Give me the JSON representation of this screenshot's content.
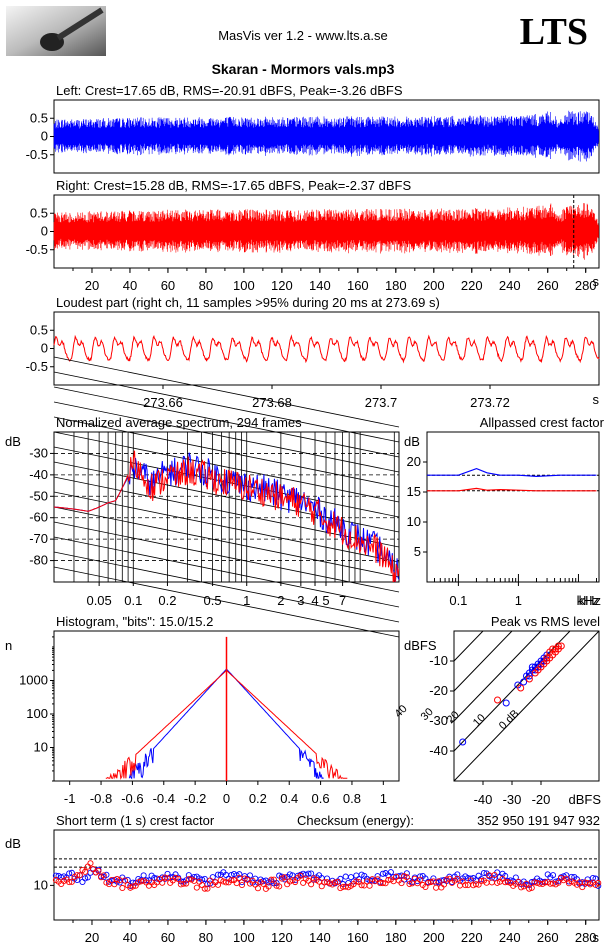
{
  "header": {
    "app_title": "MasVis ver 1.2 - www.lts.a.se",
    "logo_text": "LTS",
    "file_title": "Skaran - Mormors vals.mp3"
  },
  "chart_data": [
    {
      "type": "line",
      "panel": "waveform-left",
      "title": "Left: Crest=17.65 dB, RMS=-20.91 dBFS, Peak=-3.26 dBFS",
      "channel": "left",
      "color": "#0000ff",
      "ylim": [
        -1,
        1
      ],
      "ytick_labels": [
        "0.5",
        "0",
        "-0.5"
      ],
      "yticks": [
        0.5,
        0,
        -0.5
      ],
      "xlim": [
        0,
        287
      ],
      "duration_s": 287,
      "envelope": {
        "t": [
          0,
          5,
          10,
          20,
          40,
          60,
          80,
          100,
          120,
          140,
          160,
          180,
          200,
          220,
          240,
          255,
          262,
          266,
          270,
          275,
          280,
          284,
          287
        ],
        "amp": [
          0.45,
          0.5,
          0.48,
          0.5,
          0.52,
          0.53,
          0.55,
          0.55,
          0.54,
          0.55,
          0.56,
          0.55,
          0.56,
          0.57,
          0.6,
          0.62,
          0.72,
          0.4,
          0.72,
          0.68,
          0.74,
          0.55,
          0.3
        ]
      }
    },
    {
      "type": "line",
      "panel": "waveform-right",
      "title": "Right: Crest=15.28 dB, RMS=-17.65 dBFS, Peak=-2.37 dBFS",
      "channel": "right",
      "color": "#ff0000",
      "ylim": [
        -1,
        1
      ],
      "yticks": [
        0.5,
        0,
        -0.5
      ],
      "ytick_labels": [
        "0.5",
        "0",
        "-0.5"
      ],
      "xlim": [
        0,
        287
      ],
      "xticks": [
        20,
        40,
        60,
        80,
        100,
        120,
        140,
        160,
        180,
        200,
        220,
        240,
        260,
        280
      ],
      "xtick_labels": [
        "20",
        "40",
        "60",
        "80",
        "100",
        "120",
        "140",
        "160",
        "180",
        "200",
        "220",
        "240",
        "260",
        "280"
      ],
      "xunit": "s",
      "marker_time": 273.69,
      "envelope": {
        "t": [
          0,
          5,
          10,
          20,
          40,
          60,
          80,
          100,
          120,
          140,
          160,
          180,
          200,
          220,
          240,
          255,
          262,
          266,
          270,
          275,
          280,
          284,
          287
        ],
        "amp": [
          0.5,
          0.55,
          0.53,
          0.56,
          0.58,
          0.6,
          0.6,
          0.61,
          0.6,
          0.61,
          0.62,
          0.62,
          0.63,
          0.64,
          0.67,
          0.7,
          0.78,
          0.45,
          0.8,
          0.75,
          0.8,
          0.6,
          0.3
        ]
      }
    },
    {
      "type": "line",
      "panel": "loudest-part",
      "title": "Loudest part (right ch, 11 samples >95% during 20 ms at 273.69 s)",
      "color": "#ff0000",
      "ylim": [
        -1,
        1
      ],
      "yticks": [
        0.5,
        0,
        -0.5
      ],
      "ytick_labels": [
        "0.5",
        "0",
        "-0.5"
      ],
      "xlim": [
        273.64,
        273.74
      ],
      "xticks": [
        273.66,
        273.68,
        273.7,
        273.72
      ],
      "xtick_labels": [
        "273.66",
        "273.68",
        "273.7",
        "273.72"
      ],
      "xunit": "s",
      "period_ms": 3.6,
      "amplitude": 0.3
    },
    {
      "type": "line",
      "panel": "spectrum",
      "title": "Normalized average spectrum, 294 frames",
      "ylabel": "dB",
      "xscale": "log",
      "xlim": [
        0.02,
        22
      ],
      "ylim": [
        -90,
        -20
      ],
      "yticks": [
        -30,
        -40,
        -50,
        -60,
        -70,
        -80
      ],
      "ytick_labels": [
        "-30",
        "-40",
        "-50",
        "-60",
        "-70",
        "-80"
      ],
      "xticks": [
        0.05,
        0.1,
        0.2,
        0.5,
        1,
        2,
        3,
        4,
        5,
        7
      ],
      "xtick_labels": [
        "0.05",
        "0.1",
        "0.2",
        "0.5",
        "1",
        "2",
        "3",
        "4",
        "5",
        "7"
      ],
      "xunit": "kHz",
      "grid": true,
      "series": [
        {
          "channel": "left",
          "color": "#0000ff",
          "x": [
            0.02,
            0.03,
            0.04,
            0.05,
            0.06,
            0.07,
            0.08,
            0.1,
            0.12,
            0.15,
            0.2,
            0.25,
            0.3,
            0.4,
            0.5,
            0.7,
            1,
            1.5,
            2,
            3,
            4,
            5,
            7,
            10,
            15,
            20
          ],
          "y": [
            -55,
            -56,
            -57,
            -55,
            -53,
            -52,
            -46,
            -36,
            -40,
            -44,
            -38,
            -39,
            -35,
            -38,
            -40,
            -43,
            -45,
            -47,
            -50,
            -52,
            -56,
            -60,
            -65,
            -70,
            -75,
            -85
          ]
        },
        {
          "channel": "right",
          "color": "#ff0000",
          "x": [
            0.02,
            0.03,
            0.04,
            0.05,
            0.06,
            0.07,
            0.08,
            0.1,
            0.12,
            0.15,
            0.2,
            0.25,
            0.3,
            0.4,
            0.5,
            0.7,
            1,
            1.5,
            2,
            3,
            4,
            5,
            7,
            10,
            15,
            20
          ],
          "y": [
            -55,
            -56,
            -57,
            -55,
            -53,
            -52,
            -46,
            -34,
            -40,
            -46,
            -40,
            -41,
            -38,
            -40,
            -42,
            -44,
            -46,
            -48,
            -51,
            -53,
            -57,
            -61,
            -66,
            -71,
            -76,
            -86
          ]
        }
      ]
    },
    {
      "type": "line",
      "panel": "allpassed-crest",
      "title": "Allpassed crest factor",
      "ylabel": "dB",
      "xscale": "log",
      "xlim": [
        0.03,
        22
      ],
      "ylim": [
        0,
        25
      ],
      "yticks": [
        20,
        15,
        10,
        5
      ],
      "ytick_labels": [
        "20",
        "15",
        "10",
        "5"
      ],
      "xticks": [
        0.1,
        1
      ],
      "xtick_labels": [
        "0.1",
        "1"
      ],
      "xunit": "kHz",
      "reference_lines": [
        17.8,
        15.2
      ],
      "series": [
        {
          "channel": "left",
          "color": "#0000ff",
          "x": [
            0.03,
            0.05,
            0.1,
            0.2,
            0.3,
            0.5,
            1,
            2,
            5,
            10,
            20
          ],
          "y": [
            17.8,
            17.8,
            17.8,
            18.9,
            18.2,
            17.8,
            17.8,
            17.6,
            17.8,
            17.8,
            17.8
          ]
        },
        {
          "channel": "right",
          "color": "#ff0000",
          "x": [
            0.03,
            0.05,
            0.1,
            0.2,
            0.3,
            0.5,
            1,
            2,
            5,
            10,
            20
          ],
          "y": [
            15.2,
            15.2,
            15.2,
            15.6,
            15.3,
            15.4,
            15.3,
            15.2,
            15.2,
            15.2,
            15.2
          ]
        }
      ]
    },
    {
      "type": "line",
      "panel": "histogram",
      "title": "Histogram, \"bits\": 15.0/15.2",
      "ylabel": "n",
      "yscale": "log",
      "xlim": [
        -1.1,
        1.1
      ],
      "ylim": [
        1,
        30000
      ],
      "yticks": [
        1000,
        100,
        10
      ],
      "ytick_labels": [
        "1000",
        "100",
        "10"
      ],
      "xticks": [
        -1,
        -0.8,
        -0.6,
        -0.4,
        -0.2,
        0,
        0.2,
        0.4,
        0.6,
        0.8,
        1
      ],
      "xtick_labels": [
        "-1",
        "-0.8",
        "-0.6",
        "-0.4",
        "-0.2",
        "0",
        "0.2",
        "0.4",
        "0.6",
        "0.8",
        "1"
      ],
      "series": [
        {
          "channel": "left",
          "color": "#0000ff",
          "peak": 2200,
          "spread": 0.085,
          "limit": 0.62
        },
        {
          "channel": "right",
          "color": "#ff0000",
          "peak": 2000,
          "spread": 0.1,
          "limit": 0.77
        }
      ]
    },
    {
      "type": "scatter",
      "panel": "peak-vs-rms",
      "title": "Peak vs RMS level",
      "ylabel": "dBFS",
      "xlabel": "dBFS",
      "xlim": [
        -50,
        0
      ],
      "ylim": [
        -50,
        0
      ],
      "yticks": [
        -10,
        -20,
        -30,
        -40
      ],
      "ytick_labels": [
        "-10",
        "-20",
        "-30",
        "-40"
      ],
      "xticks": [
        -40,
        -30,
        -20
      ],
      "xtick_labels": [
        "-40",
        "-30",
        "-20"
      ],
      "crest_lines": [
        0,
        10,
        20,
        30,
        40
      ],
      "crest_labels": [
        "0 dB",
        "10",
        "20",
        "30",
        "40"
      ],
      "series": [
        {
          "channel": "left",
          "color": "#0000ff",
          "points": [
            [
              -47,
              -37
            ],
            [
              -32,
              -24
            ],
            [
              -28,
              -18
            ],
            [
              -25,
              -15
            ],
            [
              -24,
              -14
            ],
            [
              -22,
              -12
            ],
            [
              -21,
              -11
            ],
            [
              -20,
              -10
            ],
            [
              -23,
              -13
            ],
            [
              -19,
              -9
            ],
            [
              -26,
              -17
            ],
            [
              -22,
              -13
            ],
            [
              -18,
              -8
            ],
            [
              -21,
              -12
            ],
            [
              -20,
              -11
            ],
            [
              -24,
              -15
            ],
            [
              -19,
              -10
            ],
            [
              -23,
              -12
            ]
          ]
        },
        {
          "channel": "right",
          "color": "#ff0000",
          "points": [
            [
              -35,
              -23
            ],
            [
              -27,
              -19
            ],
            [
              -24,
              -16
            ],
            [
              -22,
              -14
            ],
            [
              -21,
              -13
            ],
            [
              -20,
              -12
            ],
            [
              -19,
              -11
            ],
            [
              -18,
              -10
            ],
            [
              -17,
              -9
            ],
            [
              -16,
              -8
            ],
            [
              -15,
              -7
            ],
            [
              -14,
              -6
            ],
            [
              -13,
              -5
            ],
            [
              -17,
              -7
            ],
            [
              -16,
              -6
            ],
            [
              -15,
              -6
            ],
            [
              -14,
              -5
            ],
            [
              -18,
              -9
            ]
          ]
        }
      ]
    },
    {
      "type": "scatter",
      "panel": "short-term-crest",
      "title": "Short term (1 s) crest factor",
      "checksum_label": "Checksum (energy):",
      "checksum_value": "352 950 191 947 932",
      "ylabel": "dB",
      "xlim": [
        0,
        287
      ],
      "ylim": [
        0,
        26
      ],
      "yticks": [
        10
      ],
      "ytick_labels": [
        "10"
      ],
      "reference_lines": [
        17.65,
        15.28
      ],
      "xticks": [
        20,
        40,
        60,
        80,
        100,
        120,
        140,
        160,
        180,
        200,
        220,
        240,
        260,
        280
      ],
      "xtick_labels": [
        "20",
        "40",
        "60",
        "80",
        "100",
        "120",
        "140",
        "160",
        "180",
        "200",
        "220",
        "240",
        "260",
        "280"
      ],
      "xunit": "s",
      "series": [
        {
          "channel": "left",
          "color": "#0000ff",
          "t": [
            5,
            10,
            15,
            20,
            25,
            30,
            40,
            50,
            60,
            70,
            80,
            90,
            100,
            110,
            120,
            130,
            140,
            150,
            160,
            170,
            180,
            190,
            200,
            210,
            220,
            230,
            240,
            250,
            260,
            270,
            280
          ],
          "y": [
            12,
            13,
            12,
            14,
            13,
            12,
            11,
            12,
            13,
            12,
            11,
            13,
            12,
            11,
            12,
            13,
            12,
            11,
            12,
            12,
            13,
            12,
            11,
            12,
            12,
            13,
            12,
            11,
            12,
            12,
            11
          ]
        },
        {
          "channel": "right",
          "color": "#ff0000",
          "t": [
            5,
            10,
            15,
            20,
            25,
            30,
            40,
            50,
            60,
            70,
            80,
            90,
            100,
            110,
            120,
            130,
            140,
            150,
            160,
            170,
            180,
            190,
            200,
            210,
            220,
            230,
            240,
            250,
            260,
            270,
            280
          ],
          "y": [
            11,
            12,
            14,
            16,
            13,
            11,
            10,
            11,
            12,
            11,
            10,
            11,
            11,
            10,
            11,
            12,
            11,
            10,
            11,
            11,
            12,
            11,
            10,
            11,
            11,
            12,
            11,
            10,
            11,
            11,
            10
          ]
        }
      ]
    }
  ]
}
